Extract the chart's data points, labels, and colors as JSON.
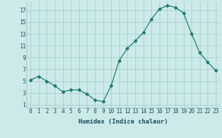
{
  "x": [
    0,
    1,
    2,
    3,
    4,
    5,
    6,
    7,
    8,
    9,
    10,
    11,
    12,
    13,
    14,
    15,
    16,
    17,
    18,
    19,
    20,
    21,
    22,
    23
  ],
  "y": [
    5.2,
    5.8,
    5.0,
    4.2,
    3.2,
    3.5,
    3.5,
    2.8,
    1.8,
    1.5,
    4.2,
    8.5,
    10.5,
    11.8,
    13.2,
    15.5,
    17.2,
    17.8,
    17.5,
    16.5,
    13.0,
    9.8,
    8.2,
    6.8
  ],
  "xlabel": "Humidex (Indice chaleur)",
  "xlim": [
    -0.5,
    23.5
  ],
  "ylim": [
    0.5,
    18.5
  ],
  "yticks": [
    1,
    3,
    5,
    7,
    9,
    11,
    13,
    15,
    17
  ],
  "xticks": [
    0,
    1,
    2,
    3,
    4,
    5,
    6,
    7,
    8,
    9,
    10,
    11,
    12,
    13,
    14,
    15,
    16,
    17,
    18,
    19,
    20,
    21,
    22,
    23
  ],
  "xtick_labels": [
    "0",
    "1",
    "2",
    "3",
    "4",
    "5",
    "6",
    "7",
    "8",
    "9",
    "10",
    "11",
    "12",
    "13",
    "14",
    "15",
    "16",
    "17",
    "18",
    "19",
    "20",
    "21",
    "22",
    "23"
  ],
  "line_color": "#1a7a6e",
  "marker": "D",
  "marker_size": 2.5,
  "bg_color": "#cceaea",
  "grid_color": "#aacccc",
  "font_color": "#1a4a5a",
  "tick_fontsize": 5.5,
  "xlabel_fontsize": 6.5
}
